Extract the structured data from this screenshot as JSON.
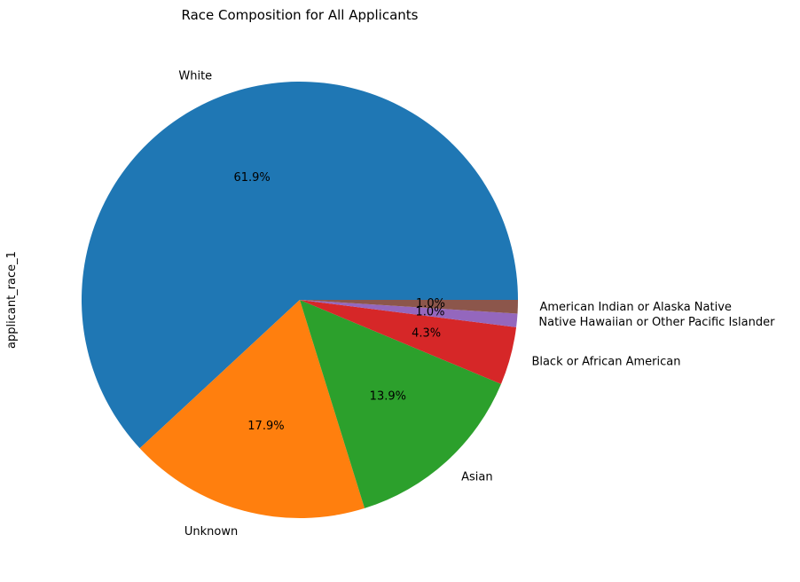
{
  "chart_data": {
    "type": "pie",
    "title": "Race Composition for All Applicants",
    "ylabel": "applicant_race_1",
    "start_angle": 0,
    "direction": "counterclockwise",
    "labels": [
      "White",
      "Unknown",
      "Asian",
      "Black or African American",
      "Native Hawaiian or Other Pacific Islander",
      "American Indian or Alaska Native"
    ],
    "values": [
      61.9,
      17.9,
      13.9,
      4.3,
      1.0,
      1.0
    ],
    "pct_labels": [
      "61.9%",
      "17.9%",
      "13.9%",
      "4.3%",
      "1.0%",
      "1.0%"
    ],
    "colors": [
      "#1f77b4",
      "#ff7f0e",
      "#2ca02c",
      "#d62728",
      "#9467bd",
      "#8c564b"
    ]
  }
}
